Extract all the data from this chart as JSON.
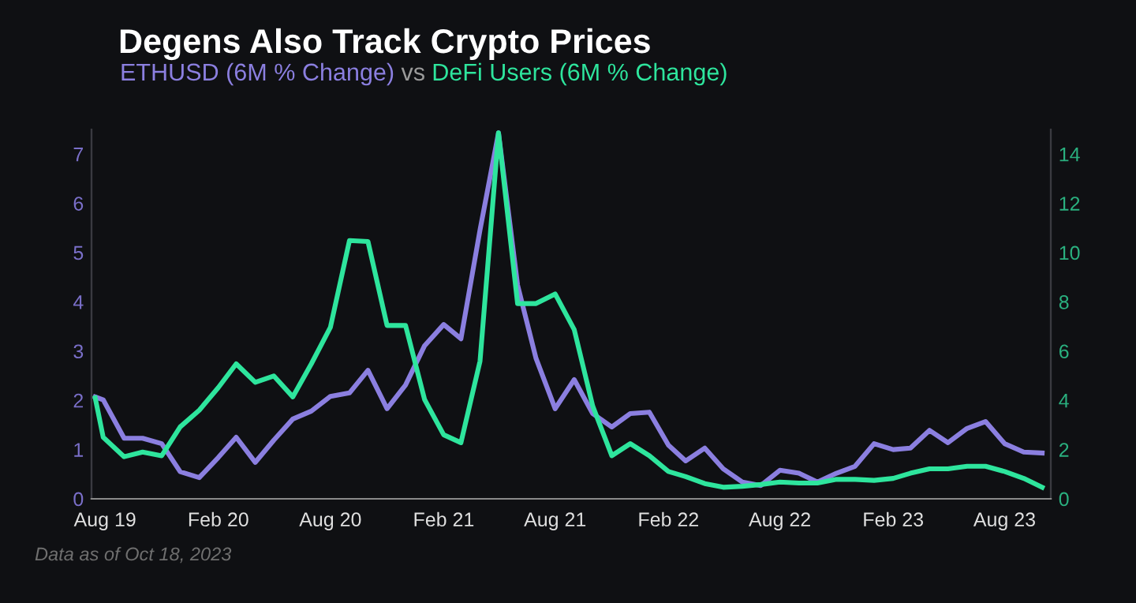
{
  "chart_data": {
    "type": "line",
    "title": "Degens Also Track Crypto Prices",
    "subtitle": "vs",
    "x": [
      "2019-07-16",
      "2019-07-29",
      "2019-09-01",
      "2019-10-01",
      "2019-11-01",
      "2019-12-01",
      "2020-01-01",
      "2020-02-01",
      "2020-03-01",
      "2020-04-01",
      "2020-05-01",
      "2020-06-01",
      "2020-07-01",
      "2020-08-01",
      "2020-09-01",
      "2020-10-01",
      "2020-11-01",
      "2020-12-01",
      "2021-01-01",
      "2021-02-01",
      "2021-03-01",
      "2021-04-01",
      "2021-05-01",
      "2021-06-01",
      "2021-07-01",
      "2021-08-01",
      "2021-09-01",
      "2021-10-01",
      "2021-11-01",
      "2021-12-01",
      "2022-01-01",
      "2022-02-01",
      "2022-03-01",
      "2022-04-01",
      "2022-05-01",
      "2022-06-01",
      "2022-07-01",
      "2022-08-01",
      "2022-09-01",
      "2022-10-01",
      "2022-11-01",
      "2022-12-01",
      "2023-01-01",
      "2023-02-01",
      "2023-03-01",
      "2023-04-01",
      "2023-05-01",
      "2023-06-01",
      "2023-07-01",
      "2023-08-01",
      "2023-09-01",
      "2023-10-01"
    ],
    "series": [
      {
        "name": "ETHUSD (6M % Change)",
        "color": "#8b7fe0",
        "values": [
          2.07,
          2.01,
          1.23,
          1.23,
          1.12,
          0.55,
          0.43,
          0.84,
          1.25,
          0.74,
          1.19,
          1.62,
          1.78,
          2.08,
          2.15,
          2.61,
          1.83,
          2.31,
          3.11,
          3.54,
          3.25,
          5.46,
          7.43,
          4.34,
          2.85,
          1.83,
          2.42,
          1.73,
          1.46,
          1.73,
          1.76,
          1.09,
          0.77,
          1.03,
          0.61,
          0.34,
          0.27,
          0.58,
          0.52,
          0.34,
          0.52,
          0.66,
          1.12,
          1.0,
          1.03,
          1.39,
          1.14,
          1.43,
          1.57,
          1.12,
          0.95,
          0.93
        ]
      },
      {
        "name": "DeFi Users (6M % Change)",
        "color": "#2ee59d",
        "axis": "y2",
        "values": [
          4.1,
          2.5,
          1.71,
          1.9,
          1.75,
          2.92,
          3.6,
          4.52,
          5.48,
          4.73,
          4.99,
          4.14,
          5.48,
          6.97,
          10.49,
          10.45,
          7.04,
          7.04,
          4.03,
          2.6,
          2.28,
          5.59,
          14.86,
          7.93,
          7.93,
          8.32,
          6.87,
          3.77,
          1.75,
          2.24,
          1.75,
          1.11,
          0.9,
          0.62,
          0.47,
          0.51,
          0.58,
          0.68,
          0.64,
          0.64,
          0.79,
          0.79,
          0.75,
          0.83,
          1.04,
          1.22,
          1.22,
          1.32,
          1.32,
          1.11,
          0.83,
          0.47
        ]
      }
    ],
    "xlim": [
      "2019-07-10",
      "2023-10-15"
    ],
    "xticks": [
      {
        "value": "2019-08-01",
        "label": "Aug 19"
      },
      {
        "value": "2020-02-01",
        "label": "Feb 20"
      },
      {
        "value": "2020-08-01",
        "label": "Aug 20"
      },
      {
        "value": "2021-02-01",
        "label": "Feb 21"
      },
      {
        "value": "2021-08-01",
        "label": "Aug 21"
      },
      {
        "value": "2022-02-01",
        "label": "Feb 22"
      },
      {
        "value": "2022-08-01",
        "label": "Aug 22"
      },
      {
        "value": "2023-02-01",
        "label": "Feb 23"
      },
      {
        "value": "2023-08-01",
        "label": "Aug 23"
      }
    ],
    "ylim": [
      0,
      7.5
    ],
    "yticks": [
      0,
      1,
      2,
      3,
      4,
      5,
      6,
      7
    ],
    "y2lim": [
      0,
      15
    ],
    "y2ticks": [
      0,
      2,
      4,
      6,
      8,
      10,
      12,
      14
    ],
    "grid": false,
    "legend": false,
    "marker": "none",
    "line_style": "solid",
    "annotations": [
      "Data as of Oct 18, 2023"
    ]
  }
}
